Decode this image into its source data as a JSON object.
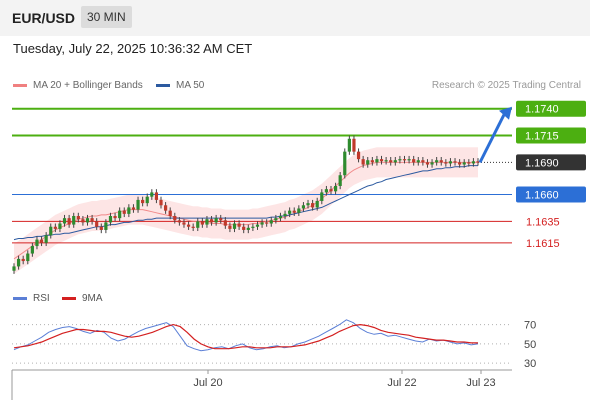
{
  "header": {
    "pair": "EUR/USD",
    "timeframe": "30 MIN"
  },
  "datetime": "Tuesday, July 22, 2025 10:36:32 AM CET",
  "legend": {
    "ma20_bb": "MA 20 + Bollinger Bands",
    "ma50": "MA 50",
    "credit": "Research © 2025 Trading Central",
    "ma20_color": "#f08080",
    "ma50_color": "#2c5aa0"
  },
  "rsi_legend": {
    "rsi": "RSI",
    "ma9": "9MA",
    "rsi_color": "#5b7fd6",
    "ma9_color": "#d42020"
  },
  "chart_data": [
    {
      "type": "candlestick",
      "title": "",
      "xlabel": "",
      "ylabel": "",
      "ylim": [
        1.1585,
        1.175
      ],
      "x_ticks": [
        "Jul 20",
        "Jul 22",
        "Jul 23"
      ],
      "levels": [
        {
          "value": 1.174,
          "label": "1.1740",
          "color": "#4caf11",
          "style": "box"
        },
        {
          "value": 1.1715,
          "label": "1.1715",
          "color": "#4caf11",
          "style": "box"
        },
        {
          "value": 1.169,
          "label": "1.1690",
          "color": "#333333",
          "style": "box-dotted"
        },
        {
          "value": 1.166,
          "label": "1.1660",
          "color": "#2c6fd6",
          "style": "box"
        },
        {
          "value": 1.1635,
          "label": "1.1635",
          "color": "#d42020",
          "style": "text"
        },
        {
          "value": 1.1615,
          "label": "1.1615",
          "color": "#d42020",
          "style": "text"
        }
      ],
      "closes": [
        1.1593,
        1.16,
        1.1598,
        1.1605,
        1.1612,
        1.1618,
        1.1615,
        1.1622,
        1.163,
        1.1628,
        1.1633,
        1.1638,
        1.1632,
        1.164,
        1.1637,
        1.1634,
        1.1638,
        1.1635,
        1.163,
        1.1627,
        1.1634,
        1.164,
        1.1638,
        1.1645,
        1.1642,
        1.1648,
        1.1646,
        1.1655,
        1.1652,
        1.1658,
        1.1662,
        1.1655,
        1.165,
        1.1645,
        1.164,
        1.1636,
        1.1634,
        1.1632,
        1.163,
        1.1629,
        1.1635,
        1.1632,
        1.1637,
        1.1634,
        1.1638,
        1.1636,
        1.1631,
        1.1628,
        1.1633,
        1.163,
        1.1627,
        1.1629,
        1.163,
        1.1632,
        1.1634,
        1.1633,
        1.1636,
        1.1638,
        1.164,
        1.1642,
        1.1645,
        1.1643,
        1.1647,
        1.165,
        1.1652,
        1.1648,
        1.1654,
        1.1662,
        1.1665,
        1.1663,
        1.1668,
        1.1678,
        1.17,
        1.1712,
        1.17,
        1.1693,
        1.1688,
        1.1692,
        1.169,
        1.1693,
        1.1691,
        1.1692,
        1.169,
        1.1692,
        1.1693,
        1.1692,
        1.1693,
        1.169,
        1.1692,
        1.169,
        1.1688,
        1.169,
        1.1692,
        1.169,
        1.1689,
        1.1691,
        1.169,
        1.1688,
        1.169,
        1.1689,
        1.1691,
        1.169
      ],
      "ma20": [
        1.16,
        1.1603,
        1.1606,
        1.1609,
        1.1612,
        1.1615,
        1.1618,
        1.1621,
        1.1624,
        1.1627,
        1.1629,
        1.1631,
        1.1633,
        1.1635,
        1.1637,
        1.1638,
        1.1639,
        1.164,
        1.164,
        1.1641,
        1.1641,
        1.1642,
        1.1643,
        1.1644,
        1.1645,
        1.1646,
        1.1646,
        1.1646,
        1.1646,
        1.1645,
        1.1644,
        1.1643,
        1.1642,
        1.1641,
        1.164,
        1.1639,
        1.1638,
        1.1637,
        1.1636,
        1.1635,
        1.1635,
        1.1634,
        1.1634,
        1.1633,
        1.1633,
        1.1633,
        1.1632,
        1.1632,
        1.1632,
        1.1632,
        1.1632,
        1.1632,
        1.1633,
        1.1633,
        1.1634,
        1.1635,
        1.1636,
        1.1637,
        1.1638,
        1.1639,
        1.1641,
        1.1642,
        1.1644,
        1.1646,
        1.1648,
        1.165,
        1.1653,
        1.1656,
        1.166,
        1.1664,
        1.1668,
        1.1672,
        1.1676,
        1.168,
        1.1683,
        1.1685,
        1.1687,
        1.1688,
        1.1689,
        1.169,
        1.169,
        1.169,
        1.169,
        1.169,
        1.169,
        1.169,
        1.169,
        1.169,
        1.169,
        1.169,
        1.169,
        1.169,
        1.169,
        1.169,
        1.169,
        1.169,
        1.169,
        1.169,
        1.169,
        1.169,
        1.169,
        1.169
      ],
      "bb_width": 0.0014,
      "ma50": [
        1.1618,
        1.1619,
        1.1619,
        1.162,
        1.162,
        1.1621,
        1.1621,
        1.1622,
        1.1622,
        1.1623,
        1.1623,
        1.1624,
        1.1624,
        1.1625,
        1.1626,
        1.1627,
        1.1628,
        1.1629,
        1.163,
        1.163,
        1.1631,
        1.1632,
        1.1632,
        1.1633,
        1.1634,
        1.1634,
        1.1635,
        1.1636,
        1.1636,
        1.1637,
        1.1637,
        1.1638,
        1.1638,
        1.1638,
        1.1638,
        1.1638,
        1.1638,
        1.1638,
        1.1638,
        1.1638,
        1.1638,
        1.1638,
        1.1638,
        1.1638,
        1.1638,
        1.1638,
        1.1638,
        1.1638,
        1.1638,
        1.1638,
        1.1638,
        1.1638,
        1.1638,
        1.1638,
        1.1638,
        1.1638,
        1.1639,
        1.1639,
        1.164,
        1.164,
        1.1641,
        1.1642,
        1.1643,
        1.1644,
        1.1645,
        1.1646,
        1.1647,
        1.1648,
        1.165,
        1.1652,
        1.1654,
        1.1656,
        1.1658,
        1.166,
        1.1662,
        1.1664,
        1.1666,
        1.1668,
        1.1669,
        1.1671,
        1.1672,
        1.1674,
        1.1675,
        1.1676,
        1.1677,
        1.1678,
        1.1679,
        1.168,
        1.1681,
        1.1682,
        1.1682,
        1.1683,
        1.1684,
        1.1684,
        1.1685,
        1.1685,
        1.1686,
        1.1686,
        1.1686,
        1.1687,
        1.1687,
        1.1687
      ],
      "forecast_arrow": {
        "from": 1.169,
        "to": 1.174
      }
    },
    {
      "type": "line",
      "title": "",
      "ylim": [
        25,
        80
      ],
      "y_ticks": [
        70,
        50,
        30
      ],
      "series": [
        {
          "name": "RSI",
          "values": [
            44,
            47,
            49,
            53,
            57,
            62,
            65,
            67,
            68,
            66,
            63,
            61,
            64,
            62,
            56,
            53,
            55,
            59,
            63,
            66,
            68,
            70,
            72,
            68,
            58,
            48,
            45,
            43,
            44,
            46,
            47,
            45,
            48,
            50,
            46,
            44,
            45,
            47,
            48,
            46,
            47,
            50,
            52,
            55,
            58,
            62,
            66,
            70,
            75,
            72,
            66,
            62,
            60,
            61,
            58,
            59,
            57,
            55,
            53,
            52,
            55,
            53,
            54,
            52,
            50,
            51,
            49,
            50
          ]
        },
        {
          "name": "9MA",
          "values": [
            46,
            47,
            48,
            50,
            52,
            55,
            58,
            61,
            63,
            65,
            65,
            64,
            63,
            63,
            62,
            60,
            58,
            57,
            58,
            60,
            62,
            65,
            68,
            70,
            68,
            62,
            55,
            50,
            47,
            45,
            45,
            45,
            46,
            47,
            47,
            46,
            46,
            46,
            47,
            47,
            47,
            48,
            49,
            51,
            53,
            56,
            59,
            63,
            66,
            69,
            70,
            69,
            67,
            64,
            62,
            61,
            60,
            59,
            57,
            56,
            55,
            54,
            54,
            53,
            52,
            52,
            51,
            51
          ]
        }
      ]
    }
  ]
}
